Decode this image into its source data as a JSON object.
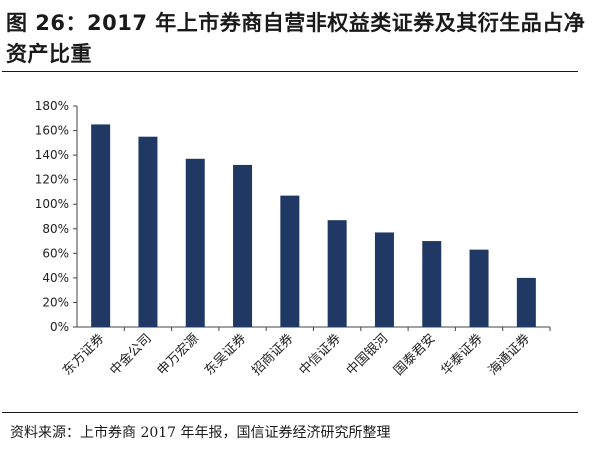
{
  "figure": {
    "title": "图 26：2017 年上市券商自营非权益类证券及其衍生品占净资产比重",
    "source": "资料来源：上市券商 2017 年年报，国信证券经济研究所整理"
  },
  "chart_data": {
    "type": "bar",
    "categories": [
      "东方证券",
      "中金公司",
      "申万宏源",
      "东吴证券",
      "招商证券",
      "中信证券",
      "中国银河",
      "国泰君安",
      "华泰证券",
      "海通证券"
    ],
    "values": [
      165,
      155,
      137,
      132,
      107,
      87,
      77,
      70,
      63,
      40
    ],
    "ylim": [
      0,
      180
    ],
    "yticks": [
      "0%",
      "20%",
      "40%",
      "60%",
      "80%",
      "100%",
      "120%",
      "140%",
      "160%",
      "180%"
    ],
    "bar_color": "#1f3864",
    "grid": false,
    "legend": "none"
  }
}
